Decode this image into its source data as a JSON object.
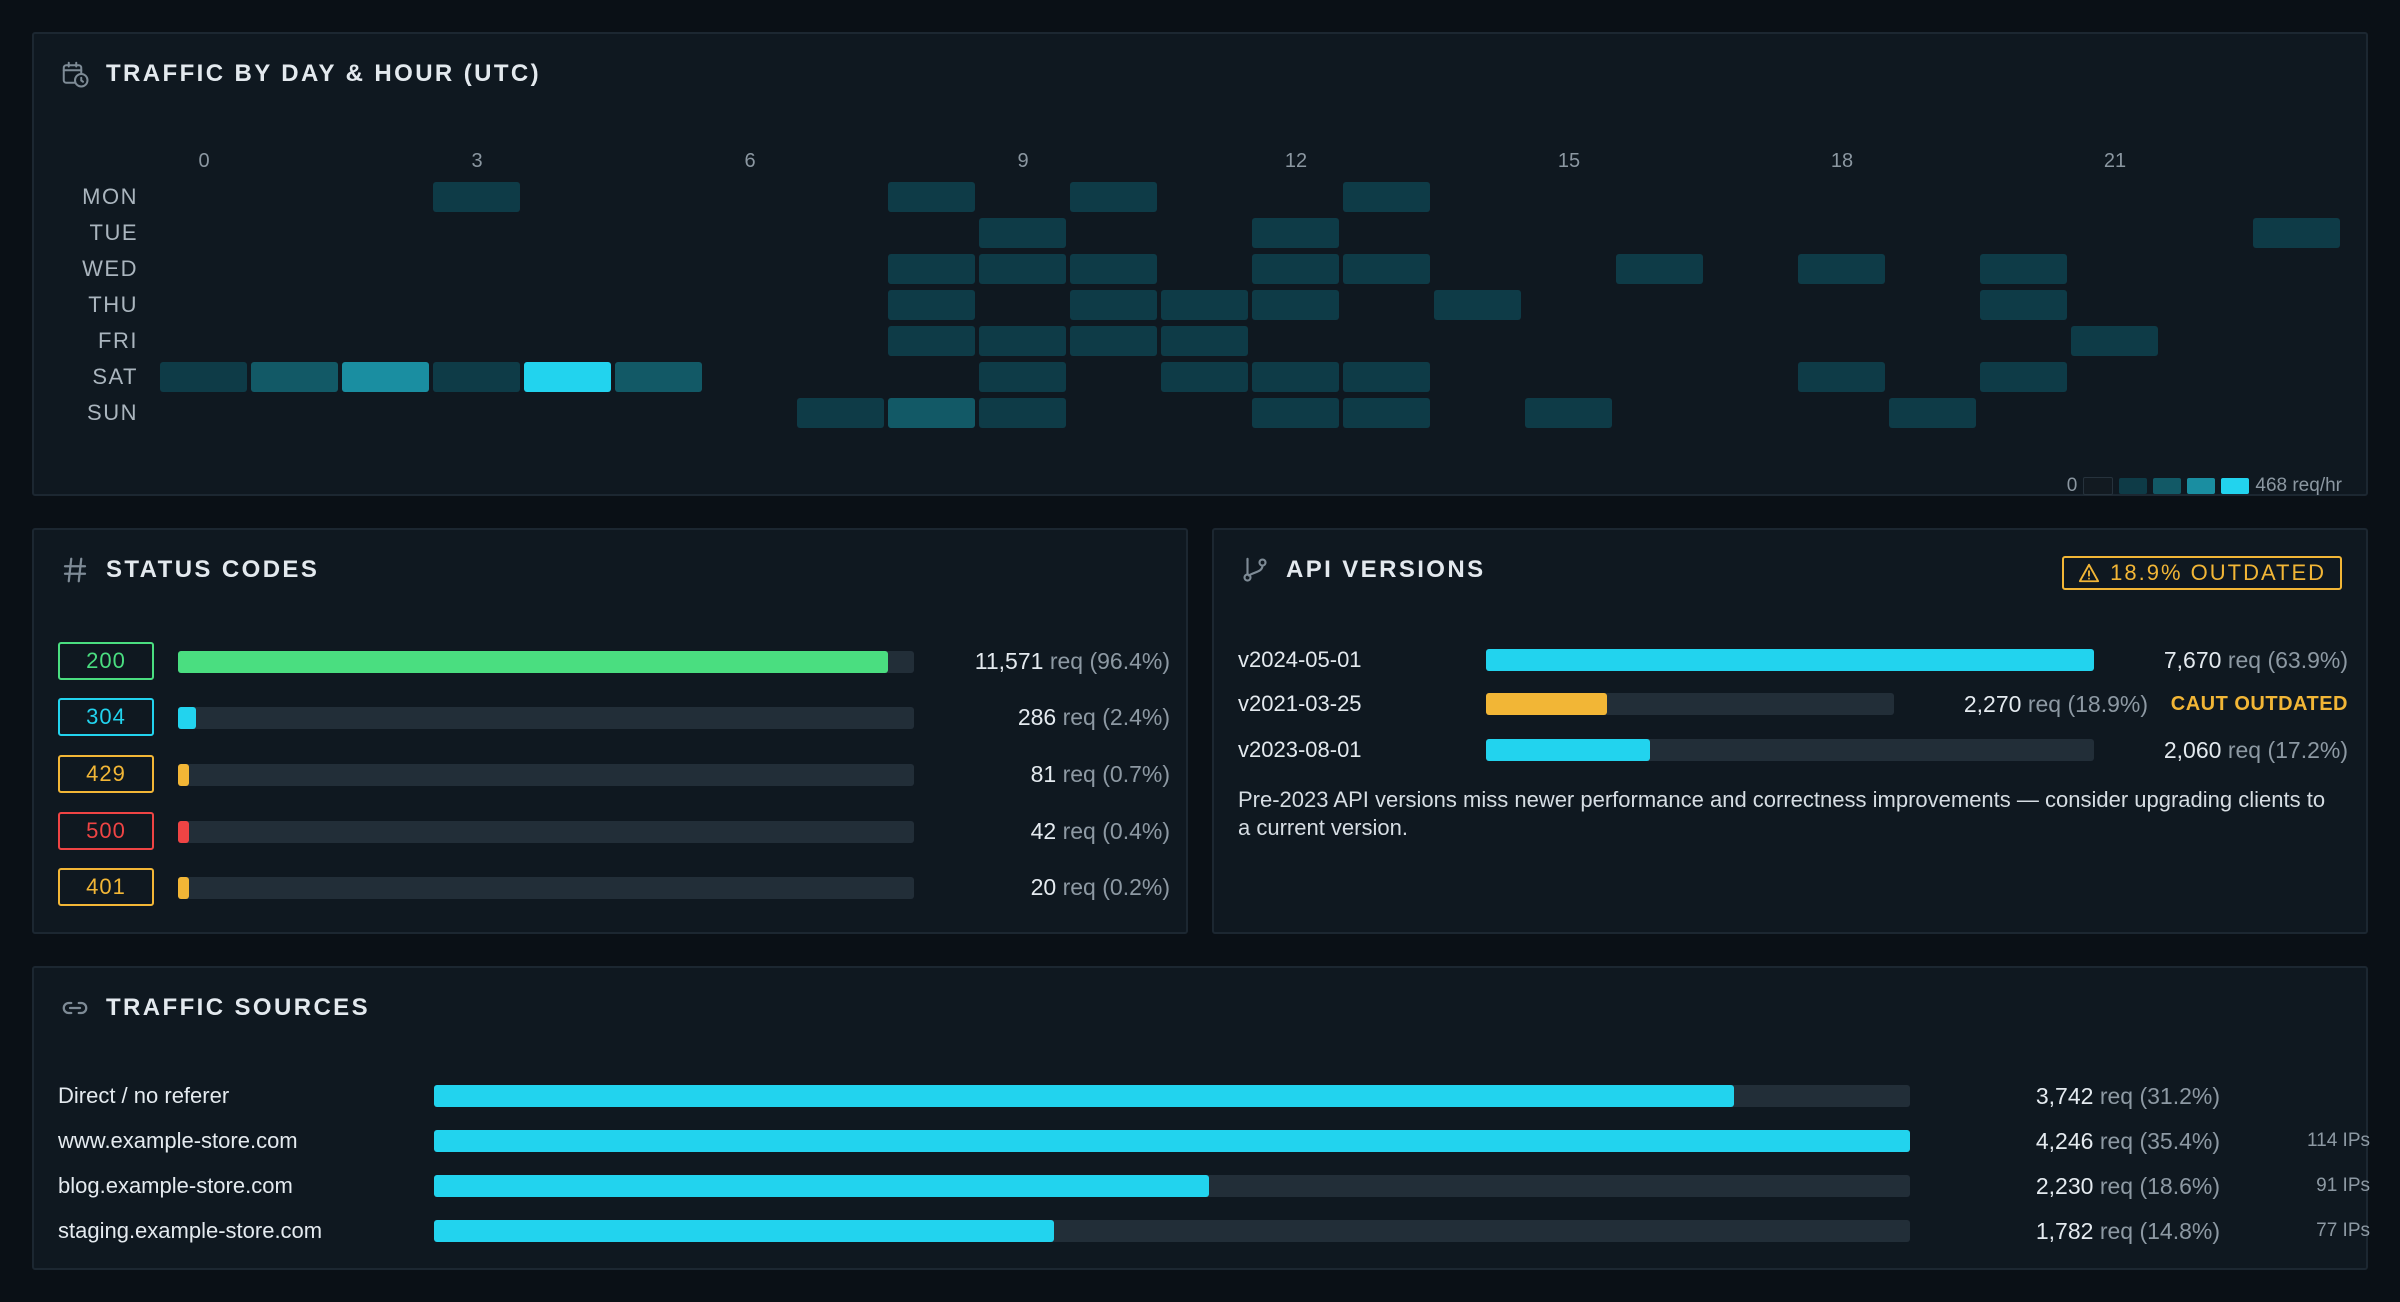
{
  "colors": {
    "accent": "#22d3ee",
    "ok": "#4ade80",
    "warn": "#f2b636",
    "error": "#ef4444",
    "heat": [
      "#121a21",
      "#0e3b47",
      "#125966",
      "#1a8ea1",
      "#22d3ee"
    ]
  },
  "heatmap": {
    "title": "TRAFFIC BY DAY & HOUR (UTC)",
    "icon": "calendar-clock-icon",
    "hour_labels": [
      "0",
      "3",
      "6",
      "9",
      "12",
      "15",
      "18",
      "21"
    ],
    "hour_label_positions": [
      0,
      3,
      6,
      9,
      12,
      15,
      18,
      21
    ],
    "days": [
      "MON",
      "TUE",
      "WED",
      "THU",
      "FRI",
      "SAT",
      "SUN"
    ],
    "cells": [
      [
        0,
        0,
        0,
        1,
        0,
        0,
        0,
        0,
        1,
        0,
        1,
        0,
        0,
        1,
        0,
        0,
        0,
        0,
        0,
        0,
        0,
        0,
        0,
        0
      ],
      [
        0,
        0,
        0,
        0,
        0,
        0,
        0,
        0,
        0,
        1,
        0,
        0,
        1,
        0,
        0,
        0,
        0,
        0,
        0,
        0,
        0,
        0,
        0,
        1
      ],
      [
        0,
        0,
        0,
        0,
        0,
        0,
        0,
        0,
        1,
        1,
        1,
        0,
        1,
        1,
        0,
        0,
        1,
        0,
        1,
        0,
        1,
        0,
        0,
        0
      ],
      [
        0,
        0,
        0,
        0,
        0,
        0,
        0,
        0,
        1,
        0,
        1,
        1,
        1,
        0,
        1,
        0,
        0,
        0,
        0,
        0,
        1,
        0,
        0,
        0
      ],
      [
        0,
        0,
        0,
        0,
        0,
        0,
        0,
        0,
        1,
        1,
        1,
        1,
        0,
        0,
        0,
        0,
        0,
        0,
        0,
        0,
        0,
        1,
        0,
        0
      ],
      [
        1,
        2,
        3,
        1,
        4,
        2,
        0,
        0,
        0,
        1,
        0,
        1,
        1,
        1,
        0,
        0,
        0,
        0,
        1,
        0,
        1,
        0,
        0,
        0
      ],
      [
        0,
        0,
        0,
        0,
        0,
        0,
        0,
        1,
        2,
        1,
        0,
        0,
        1,
        1,
        0,
        1,
        0,
        0,
        0,
        1,
        0,
        0,
        0,
        0
      ]
    ],
    "legend_min": "0",
    "legend_max": "468 req/hr"
  },
  "status": {
    "title": "STATUS CODES",
    "icon": "hash-icon",
    "rows": [
      {
        "code": "200",
        "count": "11,571",
        "unit": "req",
        "pct": "(96.4%)",
        "fraction": 0.964,
        "color": "#4ade80"
      },
      {
        "code": "304",
        "count": "286",
        "unit": "req",
        "pct": "(2.4%)",
        "fraction": 0.024,
        "color": "#22d3ee"
      },
      {
        "code": "429",
        "count": "81",
        "unit": "req",
        "pct": "(0.7%)",
        "fraction": 0.007,
        "color": "#f2b636"
      },
      {
        "code": "500",
        "count": "42",
        "unit": "req",
        "pct": "(0.4%)",
        "fraction": 0.004,
        "color": "#ef4444"
      },
      {
        "code": "401",
        "count": "20",
        "unit": "req",
        "pct": "(0.2%)",
        "fraction": 0.002,
        "color": "#f2b636"
      }
    ]
  },
  "api": {
    "title": "API VERSIONS",
    "icon": "git-branch-icon",
    "badge": "18.9% OUTDATED",
    "badge_icon": "warning-triangle-icon",
    "rows": [
      {
        "version": "v2024-05-01",
        "count": "7,670",
        "unit": "req",
        "pct": "(63.9%)",
        "fraction": 1.0,
        "color": "#22d3ee",
        "flag": ""
      },
      {
        "version": "v2021-03-25",
        "count": "2,270",
        "unit": "req",
        "pct": "(18.9%)",
        "fraction": 0.296,
        "color": "#f2b636",
        "flag": "CAUT OUTDATED"
      },
      {
        "version": "v2023-08-01",
        "count": "2,060",
        "unit": "req",
        "pct": "(17.2%)",
        "fraction": 0.269,
        "color": "#22d3ee",
        "flag": ""
      }
    ],
    "note": "Pre-2023 API versions miss newer performance and correctness improvements — consider upgrading clients to a current version."
  },
  "sources": {
    "title": "TRAFFIC SOURCES",
    "icon": "link-icon",
    "rows": [
      {
        "label": "Direct / no referer",
        "count": "3,742",
        "unit": "req",
        "pct": "(31.2%)",
        "fraction": 0.881,
        "ips": ""
      },
      {
        "label": "www.example-store.com",
        "count": "4,246",
        "unit": "req",
        "pct": "(35.4%)",
        "fraction": 1.0,
        "ips": "114 IPs"
      },
      {
        "label": "blog.example-store.com",
        "count": "2,230",
        "unit": "req",
        "pct": "(18.6%)",
        "fraction": 0.525,
        "ips": "91 IPs"
      },
      {
        "label": "staging.example-store.com",
        "count": "1,782",
        "unit": "req",
        "pct": "(14.8%)",
        "fraction": 0.42,
        "ips": "77 IPs"
      }
    ]
  }
}
